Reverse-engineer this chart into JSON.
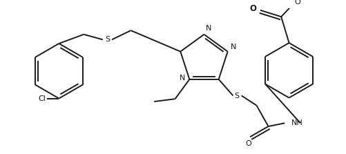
{
  "background_color": "#ffffff",
  "line_color": "#1a1a1a",
  "line_width": 1.4,
  "font_size": 7.5,
  "figsize": [
    5.02,
    2.23
  ],
  "dpi": 100,
  "xlim": [
    0,
    502
  ],
  "ylim": [
    0,
    223
  ]
}
